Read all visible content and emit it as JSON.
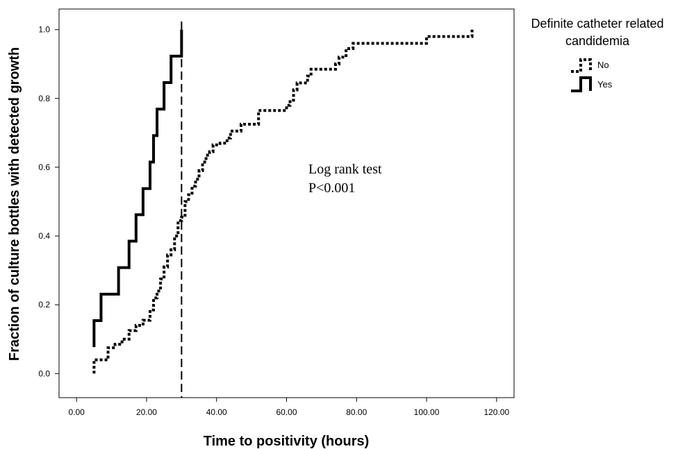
{
  "chart_data": {
    "type": "line",
    "subtype": "step",
    "title": "",
    "xlabel": "Time to positivity (hours)",
    "ylabel": "Fraction of culture bottles with detected growth",
    "xlim": [
      -5,
      125
    ],
    "ylim": [
      -0.07,
      1.06
    ],
    "xticks": [
      0,
      20,
      40,
      60,
      80,
      100,
      120
    ],
    "xtick_labels": [
      "0.00",
      "20.00",
      "40.00",
      "60.00",
      "80.00",
      "100.00",
      "120.00"
    ],
    "yticks": [
      0.0,
      0.2,
      0.4,
      0.6,
      0.8,
      1.0
    ],
    "ytick_labels": [
      "0.0",
      "0.2",
      "0.4",
      "0.6",
      "0.8",
      "1.0"
    ],
    "grid": false,
    "legend": {
      "title": "Definite catheter related candidemia",
      "title_lines": [
        "Definite catheter related",
        "candidemia"
      ],
      "placement": "top-right-outside"
    },
    "annotations": {
      "line1": "Log rank test",
      "line2": "P<0.001"
    },
    "reference_line": {
      "x": 30,
      "style": "dashed"
    },
    "series": [
      {
        "name": "No",
        "style": "dotted",
        "color": "#000000",
        "x": [
          5,
          5,
          7,
          9,
          11,
          13,
          15,
          17,
          19,
          20,
          21,
          22,
          23,
          24,
          25,
          26,
          27,
          28,
          29,
          30,
          31,
          32,
          33,
          34,
          35,
          36,
          37,
          38,
          39,
          41,
          43,
          44,
          47,
          52,
          57,
          60,
          61,
          62,
          63,
          66,
          67,
          69,
          74,
          75,
          77,
          79,
          100,
          112,
          113
        ],
        "y": [
          0.0,
          0.04,
          0.04,
          0.075,
          0.085,
          0.1,
          0.125,
          0.14,
          0.155,
          0.155,
          0.185,
          0.22,
          0.24,
          0.275,
          0.31,
          0.345,
          0.36,
          0.4,
          0.445,
          0.455,
          0.5,
          0.52,
          0.545,
          0.565,
          0.59,
          0.615,
          0.635,
          0.645,
          0.665,
          0.67,
          0.685,
          0.705,
          0.725,
          0.765,
          0.765,
          0.78,
          0.795,
          0.825,
          0.845,
          0.865,
          0.885,
          0.885,
          0.9,
          0.92,
          0.945,
          0.96,
          0.98,
          0.98,
          1.0
        ]
      },
      {
        "name": "Yes",
        "style": "solid",
        "color": "#000000",
        "x": [
          5,
          5,
          7,
          12,
          15,
          17,
          19,
          21,
          22,
          23,
          25,
          27,
          29,
          30,
          30
        ],
        "y": [
          0.077,
          0.154,
          0.231,
          0.308,
          0.385,
          0.462,
          0.538,
          0.615,
          0.692,
          0.769,
          0.846,
          0.923,
          0.923,
          0.923,
          1.0
        ]
      }
    ]
  }
}
